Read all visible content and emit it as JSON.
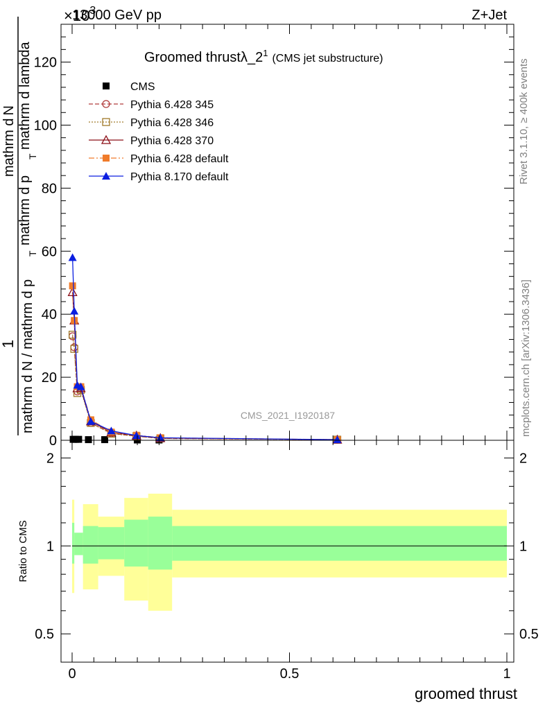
{
  "header": {
    "energy": "13000 GeV pp",
    "process": "Z+Jet",
    "exponent": "×10",
    "exponent_power": "3"
  },
  "side": {
    "rivet": "Rivet 3.1.10, ≥ 400k events",
    "mcplots": "mcplots.cern.ch [arXiv:1306.3436]"
  },
  "chart_data": [
    {
      "type": "line",
      "title": "Groomed thrust",
      "title_symbol": "λ_2",
      "title_sup": "1",
      "subtitle": "(CMS jet substructure)",
      "watermark": "CMS_2021_I1920187",
      "ylabel_numerator_line1": "1",
      "ylabel_denominator": "mathrm d N / mathrm d p",
      "ylabel_numerator_line2": "mathrm d",
      "ylabel_N": "N",
      "ylabel_rest": "mathrm d p",
      "ylabel_T": "T",
      "ylabel_tail": "mathrm d lambda",
      "xlim": [
        0,
        1
      ],
      "ylim": [
        0,
        132
      ],
      "y_ticks": [
        0,
        20,
        40,
        60,
        80,
        100,
        120
      ],
      "y_tick_labels": [
        "0",
        "20",
        "40",
        "60",
        "80",
        "100",
        "120"
      ],
      "legend_position": "top-left",
      "series": [
        {
          "name": "CMS",
          "color": "#000000",
          "marker": "square-filled",
          "x": [
            0.0025,
            0.0075,
            0.015,
            0.0375,
            0.075,
            0.15,
            0.2
          ],
          "y": [
            0.3,
            0.3,
            0.3,
            0.2,
            0.2,
            0.1,
            0.1
          ]
        },
        {
          "name": "Pythia 6.428 345",
          "color": "#b03a3a",
          "marker": "circle-open",
          "dash": "6,3",
          "x": [
            0.001,
            0.005,
            0.012,
            0.02,
            0.043,
            0.09,
            0.148,
            0.203,
            0.61
          ],
          "y": [
            33,
            29.5,
            15.5,
            16.5,
            5.5,
            2.2,
            1.3,
            0.6,
            0.2
          ]
        },
        {
          "name": "Pythia 6.428 346",
          "color": "#a07a2a",
          "marker": "square-open",
          "dash": "2,2",
          "x": [
            0.001,
            0.005,
            0.012,
            0.02,
            0.043,
            0.09,
            0.148,
            0.203,
            0.61
          ],
          "y": [
            33.5,
            29,
            15,
            16,
            5.5,
            2.1,
            1.3,
            0.6,
            0.2
          ]
        },
        {
          "name": "Pythia 6.428 370",
          "color": "#8b0d16",
          "marker": "triangle-open",
          "dash": "",
          "x": [
            0.001,
            0.005,
            0.012,
            0.02,
            0.043,
            0.09,
            0.148,
            0.203,
            0.61
          ],
          "y": [
            47,
            38,
            16.5,
            16.5,
            6,
            2.5,
            1.5,
            0.7,
            0.2
          ]
        },
        {
          "name": "Pythia 6.428 default",
          "color": "#f07b2a",
          "marker": "square-filled",
          "dash": "8,3,2,3",
          "x": [
            0.001,
            0.005,
            0.012,
            0.02,
            0.043,
            0.09,
            0.148,
            0.203,
            0.61
          ],
          "y": [
            49,
            38,
            17,
            17,
            6.5,
            2.6,
            1.6,
            0.8,
            0.2
          ]
        },
        {
          "name": "Pythia 8.170 default",
          "color": "#0a1ee0",
          "marker": "triangle-filled",
          "dash": "",
          "x": [
            0.001,
            0.005,
            0.012,
            0.02,
            0.043,
            0.09,
            0.148,
            0.203,
            0.61
          ],
          "y": [
            58,
            41,
            17.5,
            17,
            6,
            3,
            1.5,
            0.8,
            0.2
          ]
        }
      ]
    },
    {
      "type": "area",
      "ylabel": "Ratio to CMS",
      "xlabel": "groomed thrust",
      "xlim": [
        0,
        1
      ],
      "ylim": [
        0.4,
        2.3
      ],
      "y_scale": "log",
      "y_ticks": [
        0.5,
        1,
        2
      ],
      "y_tick_labels": [
        "0.5",
        "1",
        "2"
      ],
      "x_ticks": [
        0,
        0.5,
        1
      ],
      "x_tick_labels": [
        "0",
        "0.5",
        "1"
      ],
      "bands": [
        {
          "name": "outer",
          "color": "#ffff99",
          "bins": [
            [
              0.0,
              0.005,
              0.69,
              1.44
            ],
            [
              0.005,
              0.025,
              0.95,
              1.08
            ],
            [
              0.025,
              0.06,
              0.71,
              1.39
            ],
            [
              0.06,
              0.12,
              0.79,
              1.26
            ],
            [
              0.12,
              0.175,
              0.65,
              1.46
            ],
            [
              0.175,
              0.23,
              0.6,
              1.51
            ],
            [
              0.23,
              1.0,
              0.78,
              1.33
            ]
          ]
        },
        {
          "name": "inner",
          "color": "#99ff99",
          "bins": [
            [
              0.0,
              0.005,
              0.87,
              1.2
            ],
            [
              0.005,
              0.025,
              0.93,
              1.11
            ],
            [
              0.025,
              0.06,
              0.87,
              1.17
            ],
            [
              0.06,
              0.12,
              0.9,
              1.16
            ],
            [
              0.12,
              0.175,
              0.85,
              1.23
            ],
            [
              0.175,
              0.23,
              0.83,
              1.26
            ],
            [
              0.23,
              1.0,
              0.89,
              1.17
            ]
          ]
        }
      ],
      "reference_line": 1
    }
  ]
}
